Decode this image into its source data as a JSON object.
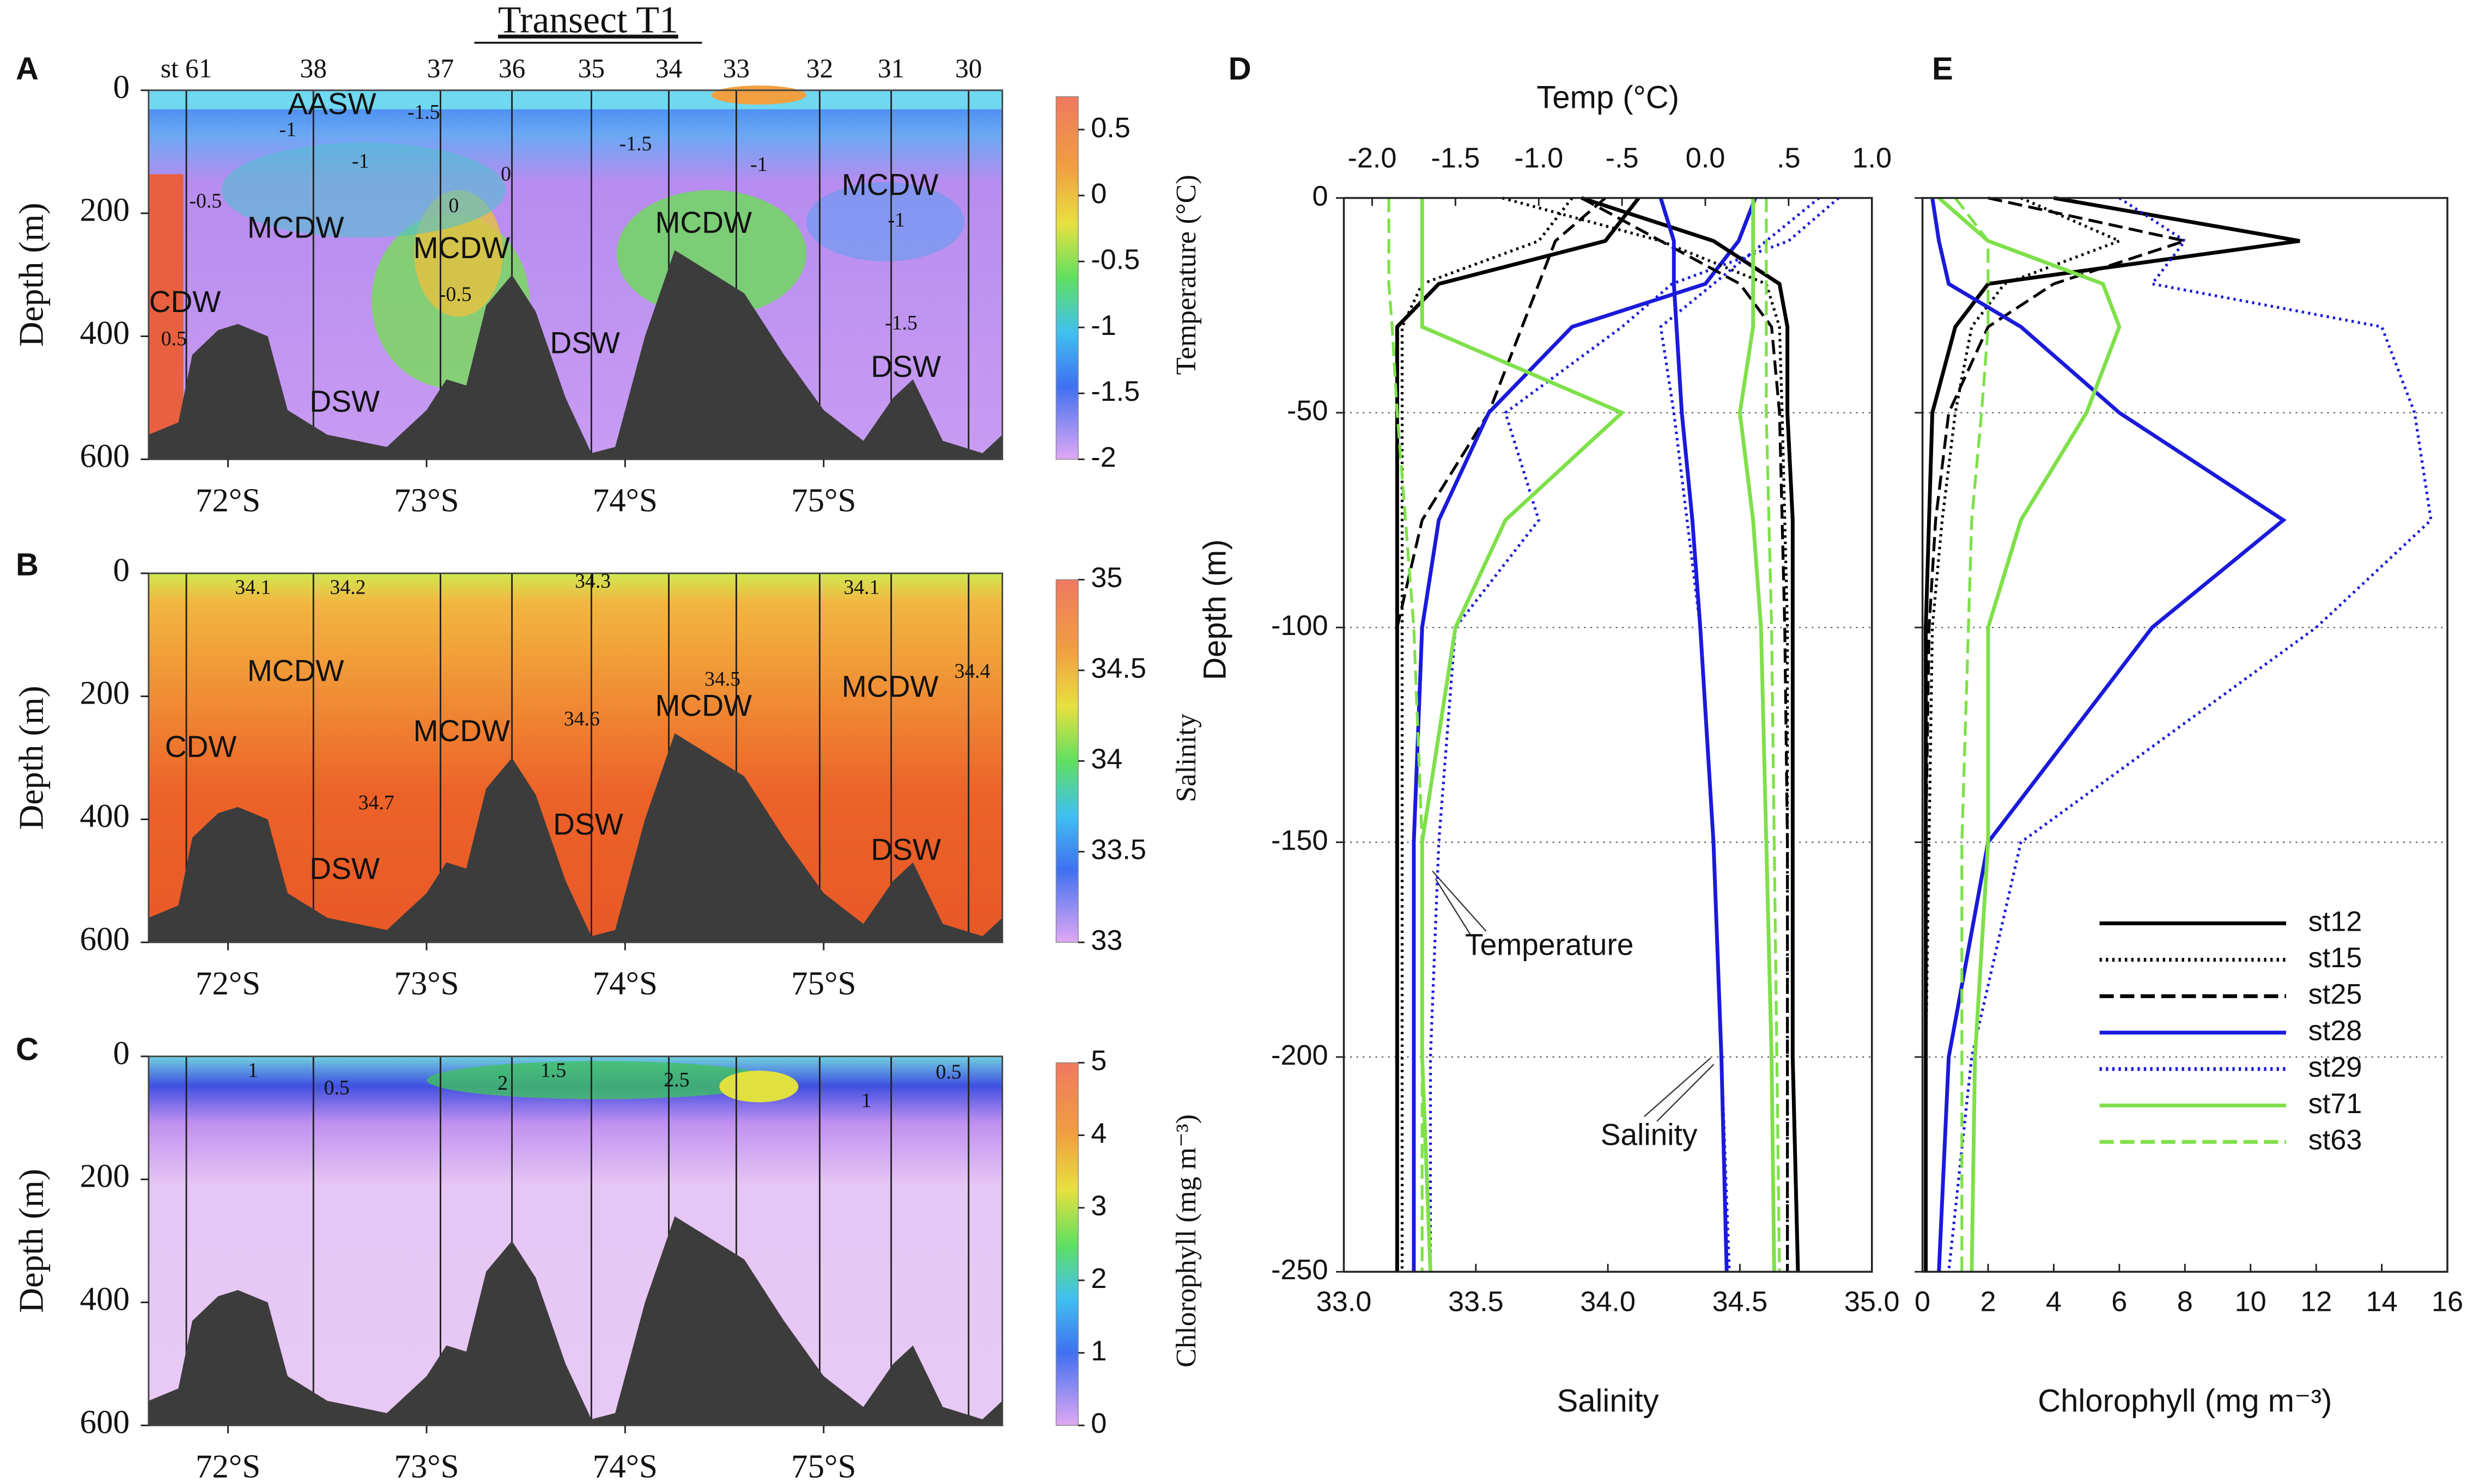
{
  "chart_data": [
    {
      "type": "contour",
      "panel": "A",
      "title": "Transect T1",
      "ylabel": "Depth (m)",
      "colorbar_label": "Temperature (°C)",
      "xlim": [
        71.6,
        75.9
      ],
      "xticks": [
        {
          "value": 72,
          "label": "72°S"
        },
        {
          "value": 73,
          "label": "73°S"
        },
        {
          "value": 74,
          "label": "74°S"
        },
        {
          "value": 75,
          "label": "75°S"
        }
      ],
      "ylim": [
        0,
        600
      ],
      "yticks": [
        0,
        200,
        400,
        600
      ],
      "y_inverted": true,
      "clim": [
        -2,
        0.75
      ],
      "cticks": [
        0.5,
        0,
        -0.5,
        -1,
        -1.5,
        -2
      ],
      "stations": [
        "st 61",
        "38",
        "37",
        "36",
        "35",
        "34",
        "33",
        "32",
        "31",
        "30"
      ],
      "station_lat": [
        71.79,
        72.43,
        73.07,
        73.43,
        73.83,
        74.22,
        74.56,
        74.98,
        75.34,
        75.73
      ],
      "bathymetry": {
        "lat": [
          71.6,
          71.75,
          71.82,
          71.95,
          72.05,
          72.2,
          72.3,
          72.5,
          72.8,
          73.0,
          73.1,
          73.2,
          73.3,
          73.43,
          73.55,
          73.7,
          73.83,
          73.95,
          74.1,
          74.25,
          74.4,
          74.6,
          74.8,
          75.0,
          75.2,
          75.35,
          75.45,
          75.6,
          75.8,
          75.9
        ],
        "depth": [
          560,
          540,
          430,
          390,
          380,
          400,
          520,
          560,
          580,
          520,
          470,
          480,
          350,
          300,
          360,
          500,
          590,
          580,
          400,
          260,
          290,
          330,
          430,
          520,
          570,
          500,
          470,
          570,
          590,
          560
        ]
      },
      "annotations": [
        "AASW",
        "MCDW",
        "MCDW",
        "MCDW",
        "MCDW",
        "CDW",
        "DSW",
        "DSW",
        "DSW",
        "-1.5",
        "-1",
        "-1",
        "-0.5",
        "0",
        "0",
        "-0.5",
        "-1.5",
        "-1",
        "-1.5",
        "0.5",
        "-1"
      ]
    },
    {
      "type": "contour",
      "panel": "B",
      "ylabel": "Depth (m)",
      "colorbar_label": "Salinity",
      "xlim": [
        71.6,
        75.9
      ],
      "xticks": [
        {
          "value": 72,
          "label": "72°S"
        },
        {
          "value": 73,
          "label": "73°S"
        },
        {
          "value": 74,
          "label": "74°S"
        },
        {
          "value": 75,
          "label": "75°S"
        }
      ],
      "ylim": [
        0,
        600
      ],
      "yticks": [
        0,
        200,
        400,
        600
      ],
      "y_inverted": true,
      "clim": [
        33,
        35
      ],
      "cticks": [
        35,
        34.5,
        34,
        33.5,
        33
      ],
      "station_lat": [
        71.79,
        72.43,
        73.07,
        73.43,
        73.83,
        74.22,
        74.56,
        74.98,
        75.34,
        75.73
      ],
      "bathymetry": {
        "lat": [
          71.6,
          71.75,
          71.82,
          71.95,
          72.05,
          72.2,
          72.3,
          72.5,
          72.8,
          73.0,
          73.1,
          73.2,
          73.3,
          73.43,
          73.55,
          73.7,
          73.83,
          73.95,
          74.1,
          74.25,
          74.4,
          74.6,
          74.8,
          75.0,
          75.2,
          75.35,
          75.45,
          75.6,
          75.8,
          75.9
        ],
        "depth": [
          560,
          540,
          430,
          390,
          380,
          400,
          520,
          560,
          580,
          520,
          470,
          480,
          350,
          300,
          360,
          500,
          590,
          580,
          400,
          260,
          290,
          330,
          430,
          520,
          570,
          500,
          470,
          570,
          590,
          560
        ]
      },
      "annotations": [
        "MCDW",
        "MCDW",
        "MCDW",
        "MCDW",
        "CDW",
        "DSW",
        "DSW",
        "DSW",
        "34.1",
        "34.2",
        "34.3",
        "34.1",
        "34.6",
        "34.5",
        "34.7",
        "34.4"
      ]
    },
    {
      "type": "contour",
      "panel": "C",
      "ylabel": "Depth (m)",
      "colorbar_label": "Chlorophyll (mg m⁻³)",
      "xlim": [
        71.6,
        75.9
      ],
      "xticks": [
        {
          "value": 72,
          "label": "72°S"
        },
        {
          "value": 73,
          "label": "73°S"
        },
        {
          "value": 74,
          "label": "74°S"
        },
        {
          "value": 75,
          "label": "75°S"
        }
      ],
      "ylim": [
        0,
        600
      ],
      "yticks": [
        0,
        200,
        400,
        600
      ],
      "y_inverted": true,
      "clim": [
        0,
        5
      ],
      "cticks": [
        5,
        4,
        3,
        2,
        1,
        0
      ],
      "station_lat": [
        71.79,
        72.43,
        73.07,
        73.43,
        73.83,
        74.22,
        74.56,
        74.98,
        75.34,
        75.73
      ],
      "bathymetry": {
        "lat": [
          71.6,
          71.75,
          71.82,
          71.95,
          72.05,
          72.2,
          72.3,
          72.5,
          72.8,
          73.0,
          73.1,
          73.2,
          73.3,
          73.43,
          73.55,
          73.7,
          73.83,
          73.95,
          74.1,
          74.25,
          74.4,
          74.6,
          74.8,
          75.0,
          75.2,
          75.35,
          75.45,
          75.6,
          75.8,
          75.9
        ],
        "depth": [
          560,
          540,
          430,
          390,
          380,
          400,
          520,
          560,
          580,
          520,
          470,
          480,
          350,
          300,
          360,
          500,
          590,
          580,
          400,
          260,
          290,
          330,
          430,
          520,
          570,
          500,
          470,
          570,
          590,
          560
        ]
      },
      "annotations": [
        "1",
        "0.5",
        "2",
        "1.5",
        "2.5",
        "0.5",
        "1"
      ]
    },
    {
      "type": "profile",
      "panel": "D",
      "xlabel": "Salinity",
      "x2label": "Temp (°C)",
      "ylabel": "Depth (m)",
      "xlim": [
        33,
        35
      ],
      "xticks": [
        {
          "value": 33,
          "label": "33.0"
        },
        33.5,
        {
          "value": 34,
          "label": "34.0"
        },
        34.5,
        {
          "value": 35,
          "label": "35.0"
        }
      ],
      "x2lim": [
        -2.17,
        1.0
      ],
      "x2ticks": [
        {
          "value": -2,
          "label": "-2.0"
        },
        -1.5,
        {
          "value": -1,
          "label": "-1.0"
        },
        {
          "value": -0.5,
          "label": "-.5"
        },
        {
          "value": 0,
          "label": "0.0"
        },
        {
          "value": 0.5,
          "label": ".5"
        },
        {
          "value": 1,
          "label": "1.0"
        }
      ],
      "ylim": [
        -250,
        0
      ],
      "yticks": [
        0,
        -50,
        -100,
        -150,
        -200,
        -250
      ],
      "grid": true,
      "depths": [
        0,
        -10,
        -20,
        -30,
        -50,
        -75,
        -100,
        -150,
        -200,
        -250
      ],
      "temperature": [
        [
          -0.4,
          -0.6,
          -1.6,
          -1.85,
          -1.85,
          -1.85,
          -1.85,
          -1.85,
          -1.85,
          -1.85
        ],
        [
          -0.8,
          -1.0,
          -1.7,
          -1.82,
          -1.82,
          -1.82,
          -1.82,
          -1.82,
          -1.82,
          -1.82
        ],
        [
          -0.6,
          -0.9,
          -1.0,
          -1.1,
          -1.3,
          -1.7,
          -1.85,
          -1.85,
          -1.85,
          -1.85
        ],
        [
          0.3,
          0.2,
          0.0,
          -0.8,
          -1.3,
          -1.6,
          -1.7,
          -1.75,
          -1.75,
          -1.75
        ],
        [
          0.8,
          0.5,
          -0.2,
          -0.5,
          -1.2,
          -1.0,
          -1.5,
          -1.6,
          -1.65,
          -1.65
        ],
        [
          -1.7,
          -1.7,
          -1.7,
          -1.7,
          -0.5,
          -1.2,
          -1.5,
          -1.7,
          -1.7,
          -1.65
        ],
        [
          -1.9,
          -1.9,
          -1.9,
          -1.88,
          -1.85,
          -1.8,
          -1.75,
          -1.7,
          -1.7,
          -1.7
        ]
      ],
      "salinity": [
        [
          33.9,
          34.4,
          34.65,
          34.68,
          34.68,
          34.7,
          34.7,
          34.7,
          34.7,
          34.72
        ],
        [
          33.6,
          34.2,
          34.6,
          34.65,
          34.66,
          34.67,
          34.68,
          34.68,
          34.68,
          34.68
        ],
        [
          33.9,
          34.2,
          34.5,
          34.62,
          34.65,
          34.66,
          34.67,
          34.68,
          34.68,
          34.68
        ],
        [
          34.2,
          34.25,
          34.25,
          34.26,
          34.28,
          34.32,
          34.35,
          34.4,
          34.43,
          34.45
        ],
        [
          34.8,
          34.6,
          34.4,
          34.2,
          34.25,
          34.3,
          34.35,
          34.4,
          34.43,
          34.46
        ],
        [
          34.55,
          34.55,
          34.55,
          34.55,
          34.5,
          34.55,
          34.58,
          34.6,
          34.62,
          34.63
        ],
        [
          34.6,
          34.6,
          34.6,
          34.6,
          34.6,
          34.61,
          34.62,
          34.63,
          34.64,
          34.65
        ]
      ],
      "annotations": [
        "Temperature",
        "Salinity"
      ]
    },
    {
      "type": "profile",
      "panel": "E",
      "xlabel": "Chlorophyll (mg m⁻³)",
      "xlim": [
        0,
        16
      ],
      "xticks": [
        0,
        2,
        4,
        6,
        8,
        10,
        12,
        14,
        16
      ],
      "ylim": [
        -250,
        0
      ],
      "yticks": [
        0,
        -50,
        -100,
        -150,
        -200,
        -250
      ],
      "grid": true,
      "show_ytick_labels": false,
      "legend": "lower right",
      "depths": [
        0,
        -10,
        -20,
        -30,
        -50,
        -75,
        -100,
        -150,
        -200,
        -250
      ],
      "series": [
        {
          "name": "st12",
          "color": "#000000",
          "dash": "solid",
          "values": [
            4,
            11.5,
            2,
            1.0,
            0.3,
            0.2,
            0.1,
            0.1,
            0.1,
            0.1
          ]
        },
        {
          "name": "st15",
          "color": "#000000",
          "dash": "dotted",
          "values": [
            3,
            6,
            2.5,
            1.5,
            1.0,
            0.6,
            0.3,
            0.2,
            0.1,
            0.1
          ]
        },
        {
          "name": "st25",
          "color": "#000000",
          "dash": "dashed",
          "values": [
            2,
            8,
            4,
            2,
            0.8,
            0.4,
            0.2,
            0.1,
            0.1,
            0.1
          ]
        },
        {
          "name": "st28",
          "color": "#1a1adb",
          "dash": "solid",
          "values": [
            0.3,
            0.5,
            0.8,
            3,
            6,
            11,
            7,
            2,
            0.8,
            0.5
          ]
        },
        {
          "name": "st29",
          "color": "#1a1adb",
          "dash": "dotted",
          "values": [
            6,
            8,
            7,
            14,
            15,
            15.5,
            12,
            3,
            1.5,
            0.8
          ]
        },
        {
          "name": "st71",
          "color": "#7fe04a",
          "dash": "solid",
          "values": [
            0.5,
            2,
            5.5,
            6,
            5,
            3,
            2,
            2,
            1.6,
            1.5
          ]
        },
        {
          "name": "st63",
          "color": "#7fe04a",
          "dash": "dashed",
          "values": [
            1,
            2,
            2,
            2,
            1.8,
            1.5,
            1.4,
            1.2,
            1.2,
            1.2
          ]
        }
      ]
    }
  ]
}
